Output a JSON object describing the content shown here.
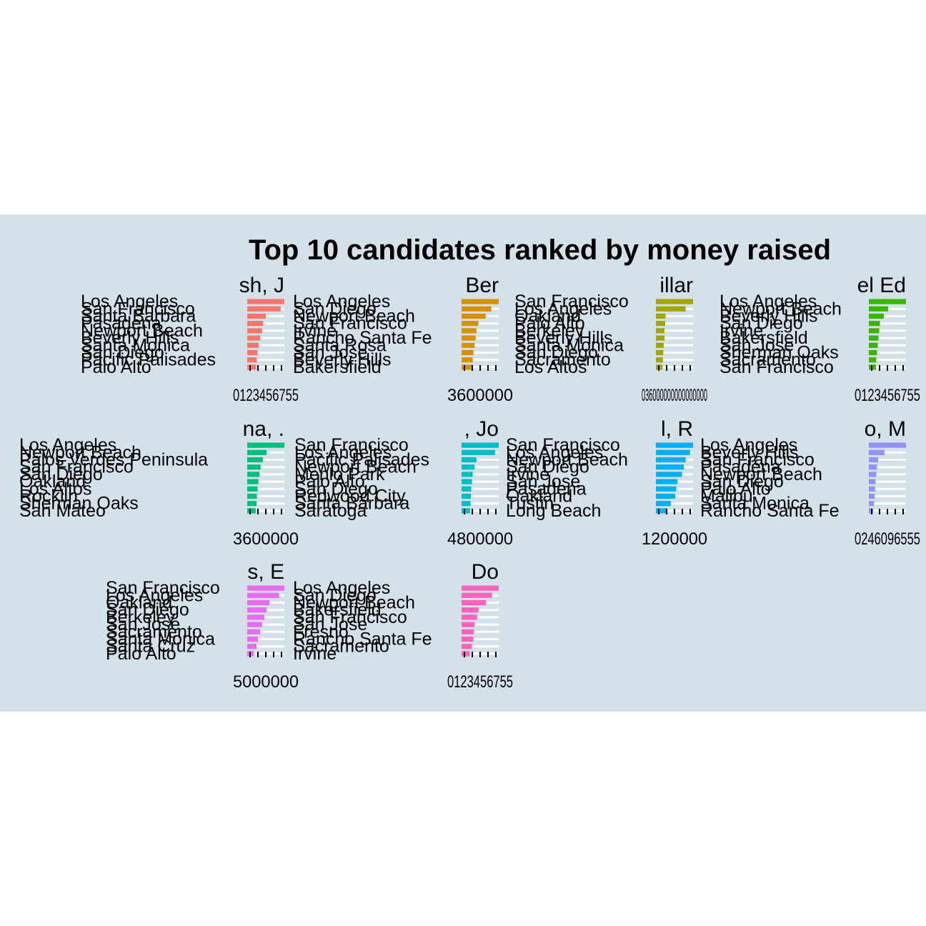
{
  "title": "Top 10 candidates ranked by money raised",
  "colors": {
    "background": "#d4e1e9",
    "gridline": "#ffffff",
    "series": [
      "#f8766d",
      "#d89000",
      "#a3a500",
      "#39b600",
      "#00bf7d",
      "#00bfc4",
      "#00b0f6",
      "#9590ff",
      "#e76bf3",
      "#ff62bc"
    ]
  },
  "chart_data": [
    {
      "type": "bar",
      "facet_title": "sh, J",
      "color": "#f8766d",
      "x_tick_labels": "0123456755",
      "categories": [
        "Los Angeles",
        "San Francisco",
        "Santa Barbara",
        "Pasadena",
        "Newport Beach",
        "Beverly Hills",
        "Santa Monica",
        "San Diego",
        "Pacific Palisades",
        "Palo Alto"
      ],
      "values": [
        10,
        9,
        5,
        4.3,
        4,
        3.5,
        3.1,
        2.8,
        2.6,
        2.4
      ]
    },
    {
      "type": "bar",
      "facet_title": "Ber",
      "color": "#d89000",
      "x_tick_labels": "3600000",
      "categories": [
        "Los Angeles",
        "San Diego",
        "Newport Beach",
        "San Francisco",
        "Irvine",
        "Rancho Santa Fe",
        "Santa Rosa",
        "San Jose",
        "Beverly Hills",
        "Bakersfield"
      ],
      "values": [
        10,
        8,
        6.5,
        4.5,
        4,
        3.8,
        3.5,
        3.2,
        3,
        3
      ]
    },
    {
      "type": "bar",
      "facet_title": "illar",
      "color": "#a3a500",
      "x_tick_labels": "036000000000000000",
      "categories": [
        "San Francisco",
        "Los Angeles",
        "Oakland",
        "Palo Alto",
        "Berkeley",
        "Beverly Hills",
        "Santa Monica",
        "San Diego",
        "Sacramento",
        "Los Altos"
      ],
      "values": [
        10,
        8,
        2.6,
        2.5,
        2.3,
        2.3,
        2.1,
        2,
        1.9,
        1.8
      ]
    },
    {
      "type": "bar",
      "facet_title": "el Ed",
      "color": "#39b600",
      "x_tick_labels": "0123456755",
      "categories": [
        "Los Angeles",
        "Newport Beach",
        "Beverly Hills",
        "San Diego",
        "Irvine",
        "Bakersfield",
        "San Jose",
        "Sherman Oaks",
        "Sacramento",
        "San Francisco"
      ],
      "values": [
        10,
        5.2,
        4,
        3,
        2.8,
        2.6,
        2.4,
        2.2,
        2,
        1.9
      ]
    },
    {
      "type": "bar",
      "facet_title": "na, .",
      "color": "#00bf7d",
      "x_tick_labels": "3600000",
      "categories": [
        "Los Angeles",
        "Newport Beach",
        "Palos Verdes Peninsula",
        "San Francisco",
        "San Diego",
        "Oakland",
        "Los Altos",
        "Rocklin",
        "Sherman Oaks",
        "San Mateo"
      ],
      "values": [
        10,
        5.2,
        4.2,
        3.6,
        3.3,
        3,
        2.8,
        2.6,
        2.5,
        2.3
      ]
    },
    {
      "type": "bar",
      "facet_title": ", Jo",
      "color": "#00bfc4",
      "x_tick_labels": "4800000",
      "categories": [
        "San Francisco",
        "Los Angeles",
        "Pacific Palisades",
        "Newport Beach",
        "Menlo Park",
        "Palo Alto",
        "San Diego",
        "Redwood City",
        "Santa Barbara",
        "Saratoga"
      ],
      "values": [
        10,
        9,
        4,
        3.5,
        3,
        2.8,
        2.6,
        2.5,
        2.4,
        2.3
      ]
    },
    {
      "type": "bar",
      "facet_title": "l, R",
      "color": "#00b0f6",
      "x_tick_labels": "1200000",
      "categories": [
        "San Francisco",
        "Los Angeles",
        "Newport Beach",
        "San Diego",
        "Irvine",
        "San Jose",
        "Pasadena",
        "Oakland",
        "Tustin",
        "Long Beach"
      ],
      "values": [
        10,
        9.2,
        8,
        7.5,
        7,
        5.8,
        5.5,
        5.2,
        4,
        3
      ]
    },
    {
      "type": "bar",
      "facet_title": "o, M",
      "color": "#9590ff",
      "x_tick_labels": "0246096555",
      "categories": [
        "Los Angeles",
        "Beverly Hills",
        "San Francisco",
        "Pasadena",
        "Newport Beach",
        "San Diego",
        "Palo Alto",
        "Malibu",
        "Santa Monica",
        "Rancho Santa Fe"
      ],
      "values": [
        10,
        4.2,
        2.5,
        2.2,
        2,
        1.8,
        1.7,
        1.6,
        1.4,
        1.2
      ]
    },
    {
      "type": "bar",
      "facet_title": "s, E",
      "color": "#e76bf3",
      "x_tick_labels": "5000000",
      "categories": [
        "San Francisco",
        "Los Angeles",
        "Oakland",
        "San Diego",
        "Berkeley",
        "San Jose",
        "Sacramento",
        "Santa Monica",
        "Santa Cruz",
        "Palo Alto"
      ],
      "values": [
        10,
        8.6,
        6,
        5.2,
        4.6,
        4,
        3.5,
        2.9,
        2.5,
        1.8
      ]
    },
    {
      "type": "bar",
      "facet_title": "Do",
      "color": "#ff62bc",
      "x_tick_labels": "0123456755",
      "categories": [
        "Los Angeles",
        "San Diego",
        "Newport Beach",
        "Bakersfield",
        "San Francisco",
        "San Jose",
        "Fresno",
        "Rancho Santa Fe",
        "Sacramento",
        "Irvine"
      ],
      "values": [
        10,
        8.2,
        6.6,
        4.6,
        4.2,
        3.5,
        3.3,
        3.2,
        2.8,
        2.2
      ]
    }
  ]
}
